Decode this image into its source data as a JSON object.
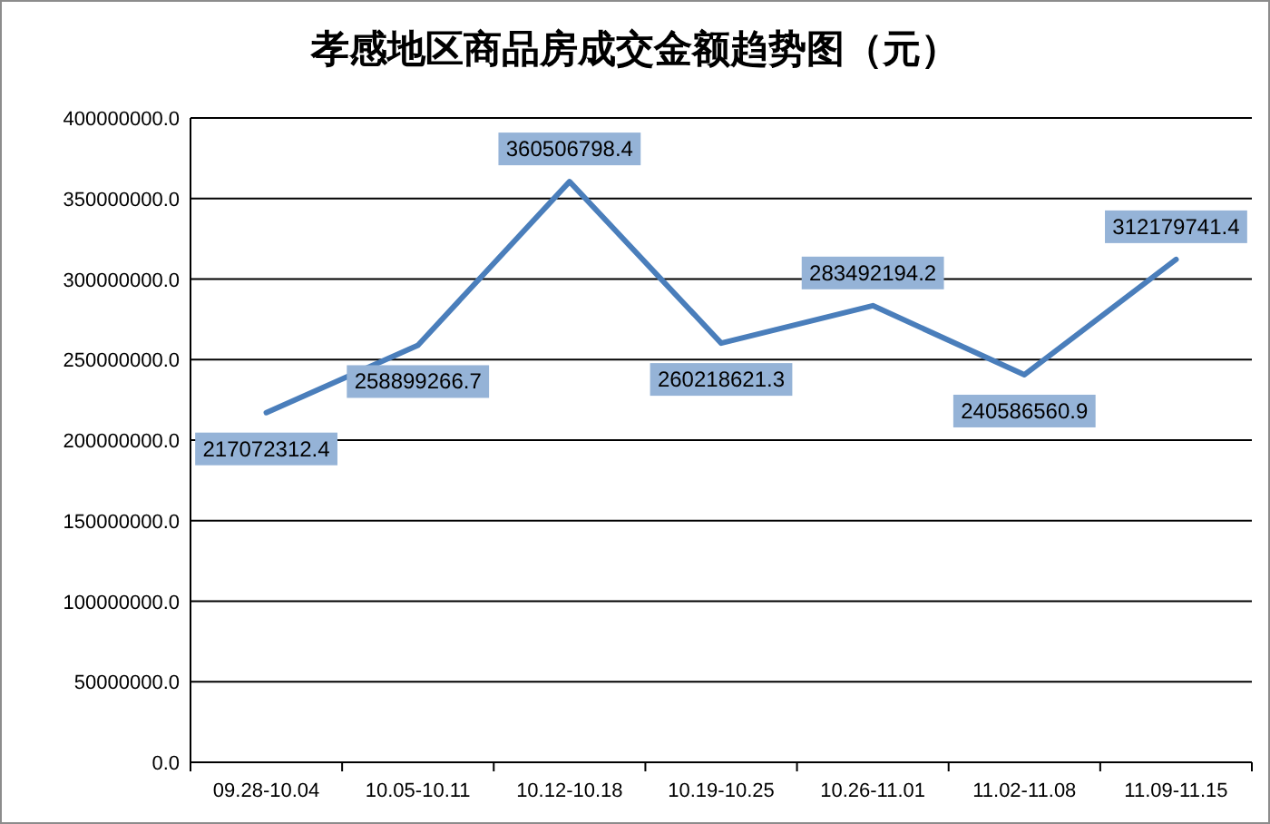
{
  "chart_data": {
    "type": "line",
    "title": "孝感地区商品房成交金额趋势图（元）",
    "categories": [
      "09.28-10.04",
      "10.05-10.11",
      "10.12-10.18",
      "10.19-10.25",
      "10.26-11.01",
      "11.02-11.08",
      "11.09-11.15"
    ],
    "series": [
      {
        "color": "#4a7ebb",
        "values": [
          217072312.4,
          258899266.7,
          360506798.4,
          260218621.3,
          283492194.2,
          240586560.9,
          312179741.4
        ]
      }
    ],
    "ylim": [
      0,
      400000000
    ],
    "yticks": [
      {
        "value": 0,
        "label": "0.0"
      },
      {
        "value": 50000000,
        "label": "50000000.0"
      },
      {
        "value": 100000000,
        "label": "100000000.0"
      },
      {
        "value": 150000000,
        "label": "150000000.0"
      },
      {
        "value": 200000000,
        "label": "200000000.0"
      },
      {
        "value": 250000000,
        "label": "250000000.0"
      },
      {
        "value": 300000000,
        "label": "300000000.0"
      },
      {
        "value": 350000000,
        "label": "350000000.0"
      },
      {
        "value": 400000000,
        "label": "400000000.0"
      }
    ],
    "grid": "y",
    "marker": "none",
    "line_style": "solid",
    "data_labels": true
  }
}
